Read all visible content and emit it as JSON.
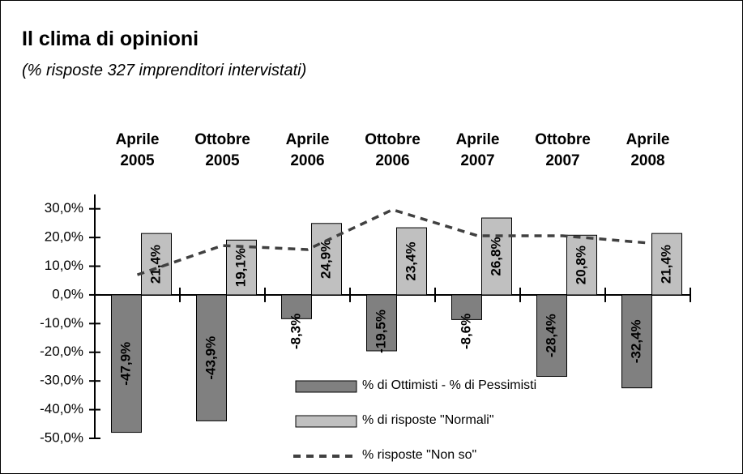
{
  "chart_data": {
    "type": "bar",
    "title": "Il clima di opinioni",
    "subtitle": "(% risposte 327 imprenditori intervistati)",
    "categories": [
      "Aprile 2005",
      "Ottobre 2005",
      "Aprile 2006",
      "Ottobre 2006",
      "Aprile 2007",
      "Ottobre 2007",
      "Aprile 2008"
    ],
    "series": [
      {
        "name": "% di Ottimisti - % di Pessimisti",
        "color": "#808080",
        "values": [
          -47.9,
          -43.9,
          -8.3,
          -19.5,
          -8.6,
          -28.4,
          -32.4
        ],
        "value_labels": [
          "-47,9%",
          "-43,9%",
          "-8,3%",
          "-19,5%",
          "-8,6%",
          "-28,4%",
          "-32,4%"
        ]
      },
      {
        "name": "% di risposte \"Normali\"",
        "color": "#c0c0c0",
        "values": [
          21.4,
          19.1,
          24.9,
          23.4,
          26.8,
          20.8,
          21.4
        ],
        "value_labels": [
          "21,4%",
          "19,1%",
          "24,9%",
          "23,4%",
          "26,8%",
          "20,8%",
          "21,4%"
        ]
      },
      {
        "name": "% risposte \"Non so\"",
        "color": "#404040",
        "type": "line",
        "dash": true,
        "values": [
          7.0,
          17.2,
          15.8,
          29.7,
          20.6,
          20.6,
          18.1
        ]
      }
    ],
    "ylim": [
      -50,
      35
    ],
    "yticks": [
      {
        "value": -50,
        "label": "-50,0%"
      },
      {
        "value": -40,
        "label": "-40,0%"
      },
      {
        "value": -30,
        "label": "-30,0%"
      },
      {
        "value": -20,
        "label": "-20,0%"
      },
      {
        "value": -10,
        "label": "-10,0%"
      },
      {
        "value": 0,
        "label": "0,0%"
      },
      {
        "value": 10,
        "label": "10,0%"
      },
      {
        "value": 20,
        "label": "20,0%"
      },
      {
        "value": 30,
        "label": "30,0%"
      }
    ],
    "grid": false,
    "legend": "bottom-center"
  }
}
